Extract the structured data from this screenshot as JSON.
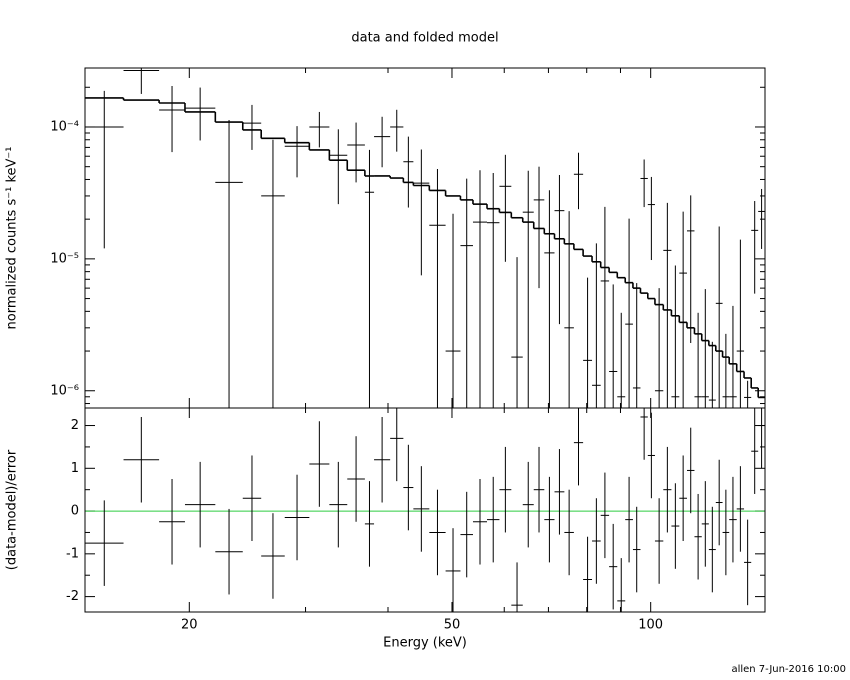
{
  "chart_data": {
    "type": "spectrum",
    "title": "data and folded model",
    "xlabel": "Energy (keV)",
    "xlog": true,
    "xlim": [
      13.9,
      149
    ],
    "xticks": [
      20,
      50,
      100
    ],
    "xminorticks": [
      30,
      40,
      60,
      70,
      80,
      90
    ],
    "bin_edges": [
      13.9,
      15.9,
      18.0,
      19.7,
      21.9,
      24.1,
      25.7,
      27.9,
      30.4,
      32.6,
      34.7,
      36.9,
      38.1,
      40.3,
      42.2,
      43.7,
      46.2,
      48.9,
      51.5,
      53.8,
      56.5,
      59.0,
      61.5,
      64.0,
      66.5,
      69.0,
      71.5,
      74.0,
      76.5,
      79.0,
      81.5,
      84.0,
      86.5,
      89.0,
      91.5,
      94.0,
      96.5,
      99.0,
      101.5,
      104.5,
      107.5,
      110.5,
      113.5,
      116.5,
      119.5,
      122.5,
      125.5,
      128.5,
      131.5,
      135.0,
      138.5,
      142.0,
      145.5,
      149.0
    ],
    "panels": [
      {
        "ylabel": "normalized counts s⁻¹ keV⁻¹",
        "ylog": true,
        "ylim": [
          7.4e-07,
          0.00028
        ],
        "yticks": [
          {
            "value": 1e-06,
            "label": "10⁻⁶"
          },
          {
            "value": 1e-05,
            "label": "10⁻⁵"
          },
          {
            "value": 0.0001,
            "label": "10⁻⁴"
          }
        ],
        "yminorticks": [
          8e-07,
          9e-07,
          2e-06,
          3e-06,
          4e-06,
          5e-06,
          6e-06,
          7e-06,
          8e-06,
          9e-06,
          2e-05,
          3e-05,
          4e-05,
          5e-05,
          6e-05,
          7e-05,
          8e-05,
          9e-05,
          0.0002
        ],
        "series": [
          {
            "type": "errorbar",
            "color": "#000000",
            "values": [
              0.0001,
              0.000268,
              0.0001345,
              0.000139,
              3.8e-05,
              0.000107,
              3e-05,
              7.15e-05,
              0.0001,
              6.1e-05,
              7.3e-05,
              3.2e-05,
              8.45e-05,
              0.0001,
              5.45e-05,
              3.75e-05,
              1.8e-05,
              2e-06,
              1.26e-05,
              1.9e-05,
              1.88e-05,
              3.55e-05,
              1.8e-06,
              2.26e-05,
              2.8e-05,
              1.11e-05,
              2.32e-05,
              3e-06,
              4.38e-05,
              1.7e-06,
              1.1e-06,
              6.8e-06,
              1.4e-06,
              9e-07,
              3.2e-06,
              1.05e-06,
              4.07e-05,
              2.58e-05,
              1e-06,
              1.16e-05,
              9e-07,
              7.8e-06,
              1.63e-05,
              9e-07,
              9e-07,
              8.5e-07,
              4.6e-06,
              9e-07,
              9e-07,
              2e-06,
              8.9e-07,
              1.645e-05,
              2.289e-05
            ],
            "errors": [
              8.8e-05,
              9e-05,
              7e-05,
              6e-05,
              7.5e-05,
              4e-05,
              5e-05,
              3e-05,
              3e-05,
              3.5e-05,
              3.5e-05,
              3.5e-05,
              3.5e-05,
              3.5e-05,
              3e-05,
              3e-05,
              3e-05,
              2e-05,
              2.8e-05,
              2.8e-05,
              2.6e-05,
              2.6e-05,
              8.5e-06,
              2.4e-05,
              2.2e-05,
              2.2e-05,
              2e-05,
              2e-05,
              2e-05,
              5.5e-06,
              1.2e-05,
              1.8e-05,
              5e-06,
              3e-06,
              1.7e-05,
              5.5e-06,
              1.6e-05,
              1.6e-05,
              5e-06,
              1.5e-05,
              8e-06,
              1.5e-05,
              1.4e-05,
              3e-06,
              5e-06,
              1.5e-06,
              1.3e-05,
              1.8e-06,
              3.5e-06,
              1.2e-05,
              3e-07,
              1.1e-05,
              1.1e-05
            ]
          },
          {
            "type": "step",
            "color": "#000000",
            "values": [
              0.000166,
              0.00016,
              0.000152,
              0.00013,
              0.000109,
              9.5e-05,
              8.2e-05,
              7.6e-05,
              6.7e-05,
              5.6e-05,
              4.7e-05,
              4.25e-05,
              4.25e-05,
              4.1e-05,
              3.8e-05,
              3.6e-05,
              3.3e-05,
              3e-05,
              2.8e-05,
              2.6e-05,
              2.4e-05,
              2.25e-05,
              2.05e-05,
              1.9e-05,
              1.7e-05,
              1.55e-05,
              1.42e-05,
              1.3e-05,
              1.18e-05,
              1.05e-05,
              9.5e-06,
              8.6e-06,
              7.9e-06,
              7.2e-06,
              6.6e-06,
              6e-06,
              5.5e-06,
              5e-06,
              4.5e-06,
              4.1e-06,
              3.7e-06,
              3.3e-06,
              3e-06,
              2.7e-06,
              2.4e-06,
              2.2e-06,
              2e-06,
              1.8e-06,
              1.6e-06,
              1.4e-06,
              1.25e-06,
              1.05e-06,
              8.9e-07
            ]
          }
        ]
      },
      {
        "ylabel": "(data-model)/error",
        "ylog": false,
        "ylim": [
          -2.36,
          2.41
        ],
        "yticks": [
          -2,
          -1,
          0,
          1,
          2
        ],
        "yminorticks": [
          -1.5,
          -0.5,
          0.5,
          1.5
        ],
        "reference_line": {
          "value": 0,
          "color": "#2ecc40"
        },
        "series": [
          {
            "type": "errorbar",
            "color": "#000000",
            "values": [
              -0.75,
              1.2,
              -0.25,
              0.15,
              -0.95,
              0.3,
              -1.05,
              -0.15,
              1.1,
              0.15,
              0.75,
              -0.3,
              1.2,
              1.7,
              0.55,
              0.05,
              -0.5,
              -1.4,
              -0.55,
              -0.25,
              -0.2,
              0.5,
              -2.2,
              0.15,
              0.5,
              -0.2,
              0.45,
              -0.5,
              1.6,
              -1.6,
              -0.7,
              -0.1,
              -1.3,
              -2.1,
              -0.2,
              -0.9,
              2.2,
              1.3,
              -0.7,
              0.5,
              -0.35,
              0.3,
              0.95,
              -0.6,
              -0.3,
              -0.9,
              0.2,
              -0.5,
              -0.2,
              0.05,
              -1.2,
              1.4,
              2.0
            ],
            "errors": [
              1,
              1,
              1,
              1,
              1,
              1,
              1,
              1,
              1,
              1,
              1,
              1,
              1,
              1,
              1,
              1,
              1,
              1,
              1,
              1,
              1,
              1,
              1,
              1,
              1,
              1,
              1,
              1,
              1,
              1,
              1,
              1,
              1,
              1,
              1,
              1,
              1,
              1,
              1,
              1,
              1,
              1,
              1,
              1,
              1,
              1,
              1,
              1,
              1,
              1,
              1,
              1,
              1
            ]
          }
        ]
      }
    ],
    "footer": "allen  7-Jun-2016 10:00"
  }
}
